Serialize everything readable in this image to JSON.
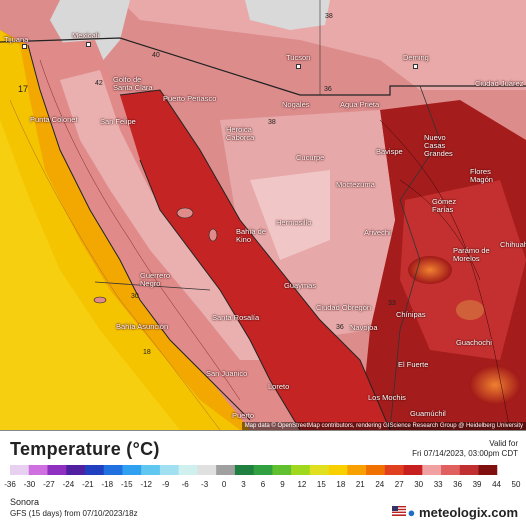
{
  "map": {
    "cities": [
      {
        "name": "Tijuana"
      },
      {
        "name": "Mexicali"
      },
      {
        "name": "Tucson"
      },
      {
        "name": "Deming"
      },
      {
        "name": "Ciudad Juárez"
      },
      {
        "name": "Golfo de Santa Clara"
      },
      {
        "name": "Puerto Peñasco"
      },
      {
        "name": "Nogales"
      },
      {
        "name": "Agua Prieta"
      },
      {
        "name": "Punta Colonet"
      },
      {
        "name": "San Felipe"
      },
      {
        "name": "Heroica Caborca"
      },
      {
        "name": "Nuevo Casas Grandes"
      },
      {
        "name": "Cucurpe"
      },
      {
        "name": "Bavispe"
      },
      {
        "name": "Moctezuma"
      },
      {
        "name": "Flores Magón"
      },
      {
        "name": "Gómez Farías"
      },
      {
        "name": "Hermosillo"
      },
      {
        "name": "Bahía de Kino"
      },
      {
        "name": "Arivechi"
      },
      {
        "name": "Parámo de Morelos"
      },
      {
        "name": "Chihuahua"
      },
      {
        "name": "Guerrero Negro"
      },
      {
        "name": "Guaymas"
      },
      {
        "name": "Ciudad Obregón"
      },
      {
        "name": "Navojoa"
      },
      {
        "name": "Chínipas"
      },
      {
        "name": "Bahía Asunción"
      },
      {
        "name": "Santa Rosalía"
      },
      {
        "name": "Guachochi"
      },
      {
        "name": "El Fuerte"
      },
      {
        "name": "San Juanico"
      },
      {
        "name": "Loreto"
      },
      {
        "name": "Los Mochis"
      },
      {
        "name": "Guamúchil"
      },
      {
        "name": "Puerto"
      }
    ],
    "contour_labels": [
      "38",
      "40",
      "42",
      "17",
      "30",
      "36",
      "18",
      "33",
      "36",
      "38"
    ],
    "attribution": "Map data © OpenStreetMap contributors, rendering GIScience Research Group @ Heidelberg University"
  },
  "legend": {
    "title": "Temperature (°C)",
    "valid_for_label": "Valid for",
    "valid_for_time": "Fri 07/14/2023, 03:00pm CDT",
    "scale_ticks": [
      "-36",
      "-30",
      "-27",
      "-24",
      "-21",
      "-18",
      "-15",
      "-12",
      "-9",
      "-6",
      "-3",
      "0",
      "3",
      "6",
      "9",
      "12",
      "15",
      "18",
      "21",
      "24",
      "27",
      "30",
      "33",
      "36",
      "39",
      "44",
      "50"
    ],
    "region": "Sonora",
    "model": "GFS (15 days) from 07/10/2023/18z",
    "brand": "meteologix.com"
  },
  "colors": {
    "ocean_warm": "#f5c400",
    "ocean_cool": "#f2a000",
    "land_hot": "#d45a5a",
    "land_very_hot": "#b02020",
    "gulf": "#c42020",
    "highland": "#f0c8c8"
  }
}
